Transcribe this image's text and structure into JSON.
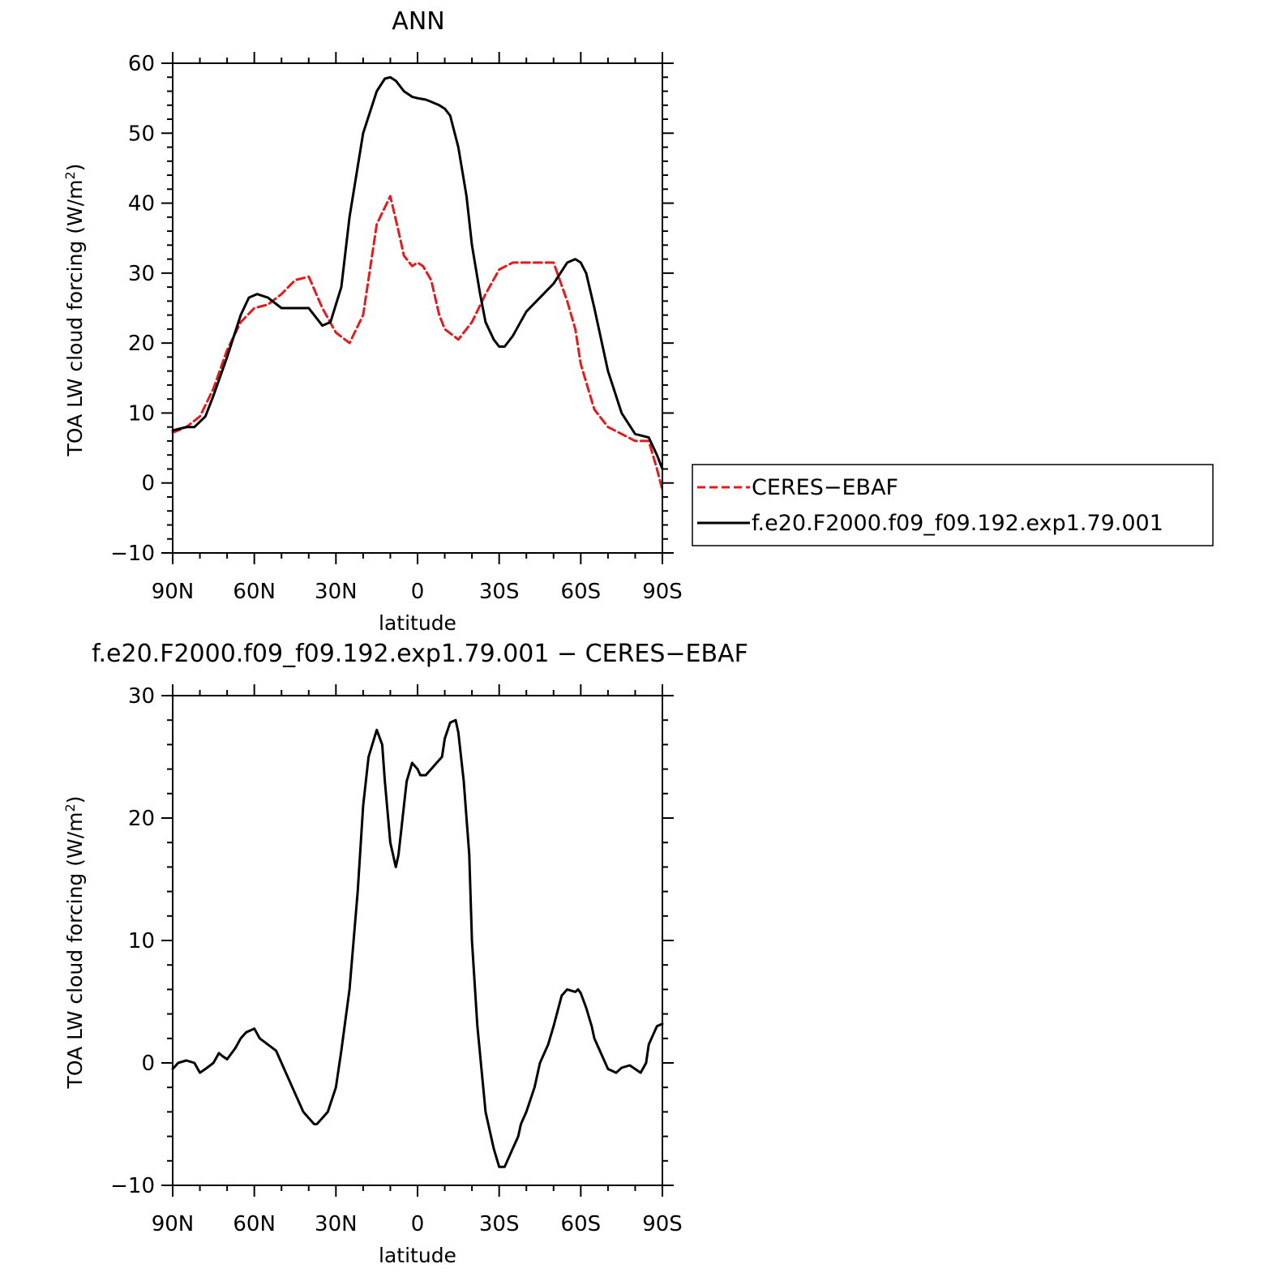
{
  "chart_data": [
    {
      "type": "line",
      "title": "ANN",
      "xlabel": "latitude",
      "ylabel": "TOA LW cloud forcing (W/m",
      "ylabel_superscript": "2",
      "ylabel_suffix": ")",
      "xlim": [
        90,
        -90
      ],
      "ylim": [
        -10,
        60
      ],
      "x_ticks": [
        90,
        60,
        30,
        0,
        -30,
        -60,
        -90
      ],
      "x_tick_labels": [
        "90N",
        "60N",
        "30N",
        "0",
        "30S",
        "60S",
        "90S"
      ],
      "y_ticks": [
        -10,
        0,
        10,
        20,
        30,
        40,
        50,
        60
      ],
      "y_tick_labels": [
        "−10",
        "0",
        "10",
        "20",
        "30",
        "40",
        "50",
        "60"
      ],
      "grid": false,
      "legend": "right",
      "series": [
        {
          "name": "CERES−EBAF",
          "color": "#e41a1c",
          "dash": "dashed",
          "x": [
            90,
            85,
            80,
            75,
            70,
            65,
            60,
            55,
            50,
            45,
            40,
            35,
            30,
            25,
            20,
            15,
            10,
            7,
            5,
            2,
            0,
            -2,
            -5,
            -8,
            -10,
            -15,
            -20,
            -25,
            -30,
            -35,
            -40,
            -45,
            -50,
            -55,
            -58,
            -60,
            -65,
            -70,
            -75,
            -80,
            -85,
            -88,
            -90
          ],
          "y": [
            7.2,
            8,
            9.5,
            13.5,
            19,
            23,
            25,
            25.5,
            27,
            29,
            29.5,
            25,
            21.5,
            20,
            24,
            37,
            41,
            36,
            32.5,
            31,
            31.5,
            31,
            29,
            24,
            22,
            20.5,
            23,
            27,
            30.5,
            31.5,
            31.5,
            31.5,
            31.5,
            26,
            22,
            17,
            10.5,
            8,
            7,
            6,
            6,
            2,
            -1
          ]
        },
        {
          "name": "f.e20.F2000.f09_f09.192.exp1.79.001",
          "color": "#000000",
          "dash": "solid",
          "x": [
            90,
            85,
            82,
            78,
            75,
            70,
            65,
            62,
            59,
            55,
            50,
            45,
            40,
            35,
            32,
            28,
            25,
            20,
            15,
            12,
            10,
            8,
            5,
            2,
            0,
            -3,
            -5,
            -8,
            -10,
            -12,
            -15,
            -18,
            -20,
            -23,
            -25,
            -28,
            -30,
            -32,
            -35,
            -40,
            -45,
            -50,
            -55,
            -58,
            -60,
            -62,
            -65,
            -70,
            -75,
            -80,
            -85,
            -88,
            -90
          ],
          "y": [
            7.5,
            8,
            8,
            9.5,
            12.5,
            18,
            24,
            26.5,
            27,
            26.5,
            25,
            25,
            25,
            22.5,
            23,
            28,
            38,
            50,
            56,
            57.8,
            58,
            57.5,
            56,
            55.2,
            55,
            54.8,
            54.5,
            54,
            53.5,
            52.5,
            48,
            41,
            34,
            27,
            23,
            20.5,
            19.5,
            19.5,
            21,
            24.5,
            26.5,
            28.5,
            31.5,
            32,
            31.5,
            30,
            25,
            16,
            10,
            7,
            6.5,
            4,
            2
          ]
        }
      ]
    },
    {
      "type": "line",
      "title": "f.e20.F2000.f09_f09.192.exp1.79.001 − CERES−EBAF",
      "xlabel": "latitude",
      "ylabel": "TOA LW cloud forcing (W/m",
      "ylabel_superscript": "2",
      "ylabel_suffix": ")",
      "xlim": [
        90,
        -90
      ],
      "ylim": [
        -10,
        30
      ],
      "x_ticks": [
        90,
        60,
        30,
        0,
        -30,
        -60,
        -90
      ],
      "x_tick_labels": [
        "90N",
        "60N",
        "30N",
        "0",
        "30S",
        "60S",
        "90S"
      ],
      "y_ticks": [
        -10,
        0,
        10,
        20,
        30
      ],
      "y_tick_labels": [
        "−10",
        "0",
        "10",
        "20",
        "30"
      ],
      "grid": false,
      "series": [
        {
          "color": "#000000",
          "dash": "solid",
          "x": [
            90,
            88,
            85,
            82,
            80,
            78,
            75,
            73,
            72,
            70,
            67,
            65,
            63,
            60,
            58,
            55,
            52,
            50,
            47,
            45,
            42,
            40,
            38,
            37,
            35,
            33,
            30,
            28,
            25,
            22,
            20,
            18,
            15,
            13,
            12,
            10,
            8,
            7,
            6,
            5,
            4,
            2,
            0,
            -1,
            -3,
            -5,
            -7,
            -9,
            -10,
            -12,
            -14,
            -15,
            -17,
            -19,
            -20,
            -22,
            -25,
            -28,
            -30,
            -32,
            -35,
            -37,
            -38,
            -40,
            -43,
            -45,
            -48,
            -50,
            -53,
            -55,
            -58,
            -59,
            -60,
            -62,
            -64,
            -65,
            -67,
            -70,
            -73,
            -75,
            -78,
            -80,
            -82,
            -84,
            -85,
            -87,
            -88,
            -90
          ],
          "y": [
            -0.5,
            0,
            0.2,
            0,
            -0.8,
            -0.5,
            0,
            0.8,
            0.6,
            0.3,
            1.2,
            2,
            2.5,
            2.8,
            2,
            1.5,
            1,
            0,
            -1.5,
            -2.5,
            -4,
            -4.5,
            -5,
            -5,
            -4.5,
            -4,
            -2,
            1,
            6,
            14,
            21,
            25,
            27.2,
            26,
            23,
            18,
            16,
            17,
            19,
            21,
            23,
            24.5,
            24,
            23.5,
            23.5,
            24,
            24.5,
            25,
            26.5,
            27.8,
            28,
            27,
            23,
            17,
            10,
            3,
            -4,
            -7,
            -8.5,
            -8.5,
            -7,
            -6,
            -5,
            -4,
            -2,
            0,
            1.5,
            3,
            5.5,
            6,
            5.8,
            6,
            5.7,
            4.5,
            3,
            2,
            1,
            -0.5,
            -0.8,
            -0.4,
            -0.2,
            -0.5,
            -0.8,
            0,
            1.5,
            2.5,
            3,
            3.2
          ]
        }
      ]
    }
  ],
  "legend": {
    "entries": [
      "CERES−EBAF",
      "f.e20.F2000.f09_f09.192.exp1.79.001"
    ]
  }
}
